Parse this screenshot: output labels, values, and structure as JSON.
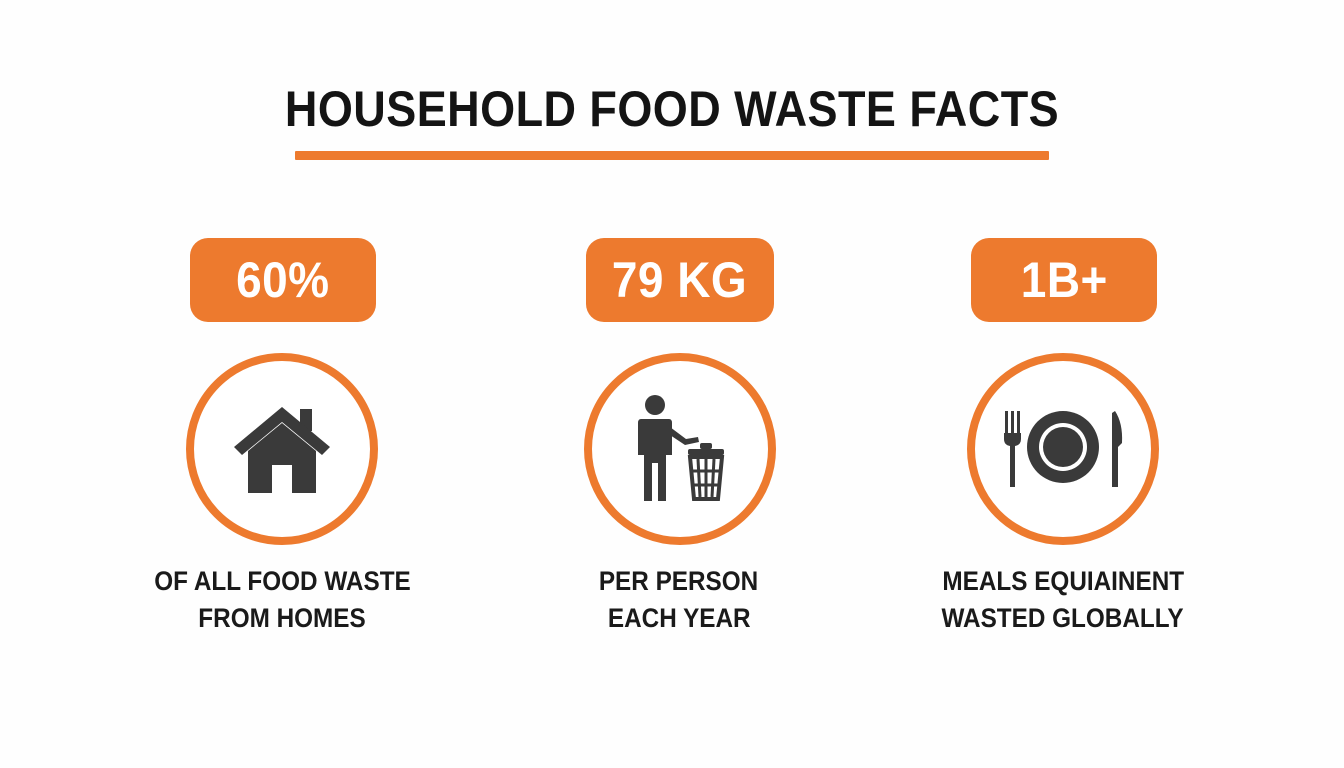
{
  "title": "HOUSEHOLD FOOD WASTE FACTS",
  "colors": {
    "accent": "#ed7a2e",
    "icon": "#3a3a3a",
    "text": "#141414",
    "background": "#fefefe"
  },
  "stats": [
    {
      "value": "60%",
      "icon": "house-icon",
      "caption_line1": "OF ALL FOOD WASTE",
      "caption_line2": "FROM HOMES"
    },
    {
      "value": "79 KG",
      "icon": "person-trash-icon",
      "caption_line1": "PER PERSON",
      "caption_line2": "EACH YEAR"
    },
    {
      "value": "1B+",
      "icon": "plate-cutlery-icon",
      "caption_line1": "MEALS EQUIAINENT",
      "caption_line2": "WASTED GLOBALLY"
    }
  ]
}
